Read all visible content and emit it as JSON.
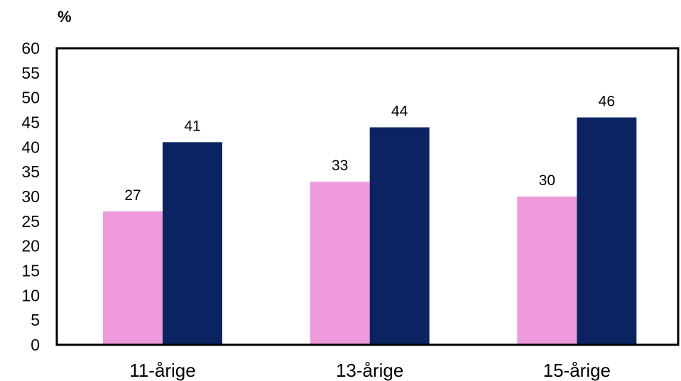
{
  "chart_data": {
    "type": "bar",
    "ylabel": "%",
    "categories": [
      "11-årige",
      "13-årige",
      "15-årige"
    ],
    "series": [
      {
        "color": "#ee9add",
        "values": [
          27,
          33,
          30
        ]
      },
      {
        "color": "#0b2461",
        "values": [
          41,
          44,
          46
        ]
      }
    ],
    "ylim": [
      0,
      60
    ],
    "yticks": [
      "0",
      "5",
      "10",
      "15",
      "20",
      "25",
      "30",
      "35",
      "40",
      "45",
      "50",
      "55",
      "60"
    ],
    "grid": false,
    "legend": "none"
  }
}
